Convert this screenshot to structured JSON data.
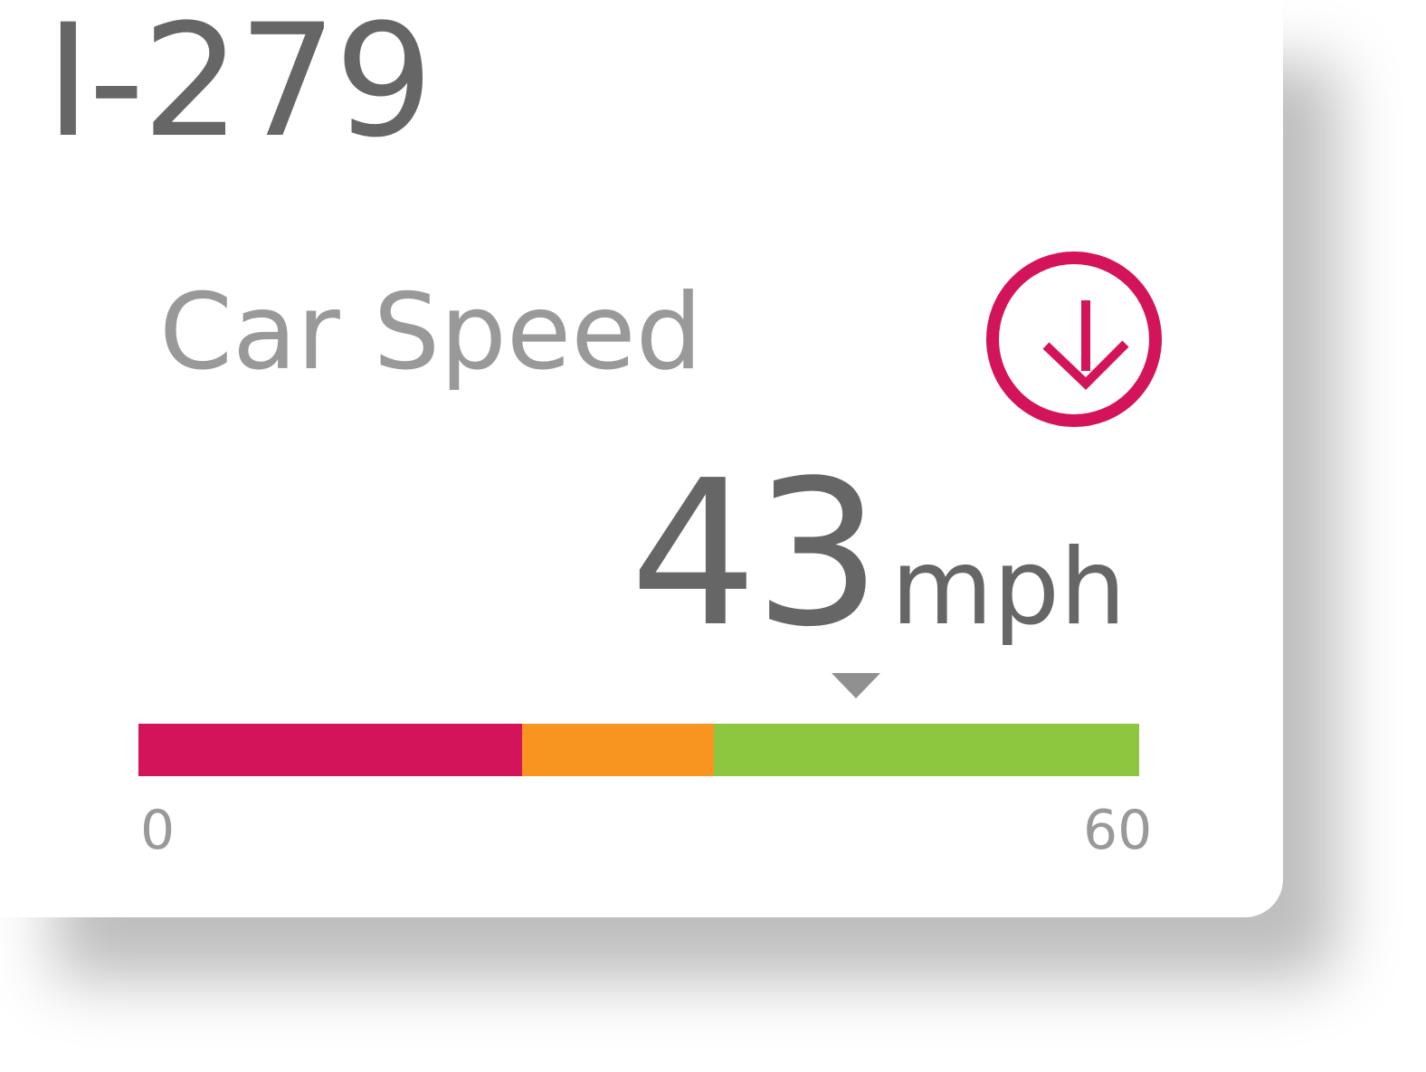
{
  "header": {
    "route": "I-279"
  },
  "metric": {
    "label": "Car Speed",
    "trend_icon": "arrow-down-circle-icon",
    "trend_color": "#d3135a"
  },
  "speed": {
    "value": "43",
    "unit": "mph",
    "current": 43
  },
  "gauge": {
    "min": 0,
    "max": 60,
    "min_label": "0",
    "max_label": "60",
    "segments": [
      {
        "from": 0,
        "to": 23,
        "color": "#d3135a"
      },
      {
        "from": 23,
        "to": 34.5,
        "color": "#f79520"
      },
      {
        "from": 34.5,
        "to": 60,
        "color": "#8dc63f"
      }
    ]
  }
}
